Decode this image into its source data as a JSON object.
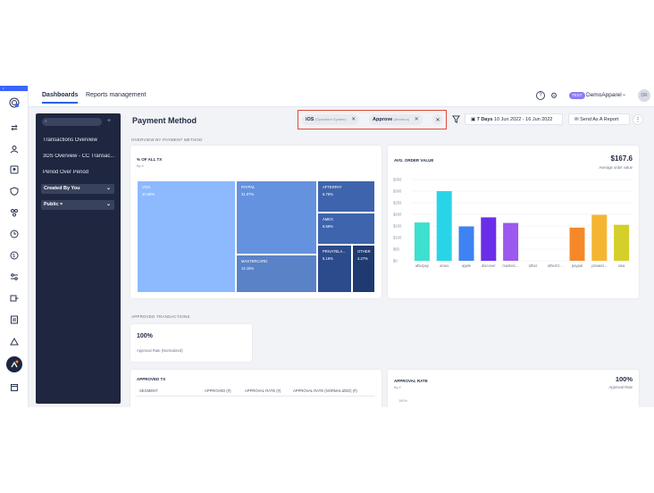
{
  "ribbon": "• DASHBOARD",
  "topbar": {
    "tabs": [
      "Dashboards",
      "Reports management"
    ],
    "org_badge": "TEST",
    "org_name": "DemoApparel",
    "avatar": "DR",
    "icons": [
      "help-icon",
      "gear-icon"
    ]
  },
  "dash_panel": {
    "search_placeholder": "",
    "items": [
      "Transactions Overview",
      "3DS Overview - CC Transac...",
      "Period Over Period"
    ],
    "dropdowns": [
      "Created By You",
      "Public ≈"
    ]
  },
  "header": {
    "title": "Payment Method",
    "filters": [
      {
        "value": "iOS",
        "field": "(Operation System)"
      },
      {
        "value": "Approve",
        "field": "(decision)"
      }
    ],
    "date_range": {
      "label": "7 Days",
      "range": "10 Jun 2022 - 16 Jun 2022"
    },
    "send_report": "Send As A Report"
  },
  "sections": {
    "overview": "OVERVIEW BY PAYMENT METHOD",
    "approved": "APPROVED TRANSACTIONS"
  },
  "treemap_card": {
    "title": "% OF ALL TX",
    "subtitle": "By #",
    "tiles": [
      {
        "name": "VISA",
        "pct": "40.69%",
        "color": "#8db9ff"
      },
      {
        "name": "PAYPAL",
        "pct": "31.07%",
        "color": "#6592de"
      },
      {
        "name": "MASTERCARD",
        "pct": "12.15%",
        "color": "#5a82c7"
      },
      {
        "name": "AFTERPAY",
        "pct": "6.76%",
        "color": "#3e64ad"
      },
      {
        "name": "AMEX",
        "pct": "6.59%",
        "color": "#3e64ad"
      },
      {
        "name": "PRIVATELA...",
        "pct": "5.16%",
        "color": "#2b4b8c"
      },
      {
        "name": "OTHER",
        "pct": "4.27%",
        "color": "#1f3a70"
      }
    ]
  },
  "aov_card": {
    "title": "AVG. ORDER VALUE",
    "value": "$167.6",
    "value_caption": "Average order value"
  },
  "chart_data": {
    "type": "bar",
    "title": "AVG. ORDER VALUE",
    "categories": [
      "afterpay",
      "amex",
      "apple",
      "discover",
      "masterc...",
      "other",
      "otherCr...",
      "paypal",
      "privatel...",
      "visa"
    ],
    "values": [
      165,
      300,
      148,
      187,
      163,
      0,
      0,
      143,
      198,
      155
    ],
    "colors": [
      "#3ee0cf",
      "#2ad4e8",
      "#3f82f2",
      "#6a2ee8",
      "#9b59f0",
      "#cccccc",
      "#cccccc",
      "#f5892a",
      "#f5b531",
      "#d4cf2a"
    ],
    "y_ticks": [
      "$0",
      "$50",
      "$100",
      "$150",
      "$200",
      "$250",
      "$300",
      "$350"
    ],
    "ylim": [
      0,
      350
    ],
    "grid": true
  },
  "approved_card": {
    "value": "100%",
    "caption": "Approval Rate (Normalized)"
  },
  "approved_tx_card": {
    "title": "APPROVED TX",
    "columns": [
      "SEGMENT",
      "APPROVED (#)",
      "APPROVAL RATE (#)",
      "APPROVAL RATE (NORMALIZED) (#)"
    ]
  },
  "approval_rate_card": {
    "title": "APPROVAL RATE",
    "subtitle": "By #",
    "value": "100%",
    "caption": "Approval Rate",
    "tick": "100%"
  }
}
